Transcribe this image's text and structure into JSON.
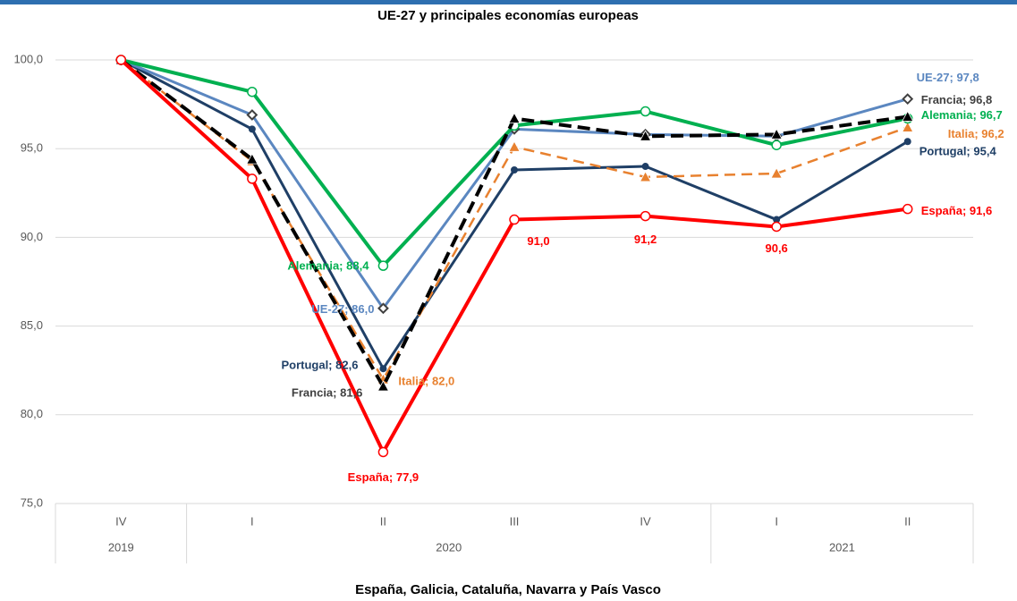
{
  "chart_data": {
    "type": "line",
    "title": "UE-27 y principales economías europeas",
    "caption": "España, Galicia, Cataluña, Navarra y País Vasco",
    "categories": [
      "IV",
      "I",
      "II",
      "III",
      "IV",
      "I",
      "II"
    ],
    "year_categories": [
      "2019",
      "2020",
      null,
      null,
      null,
      "2021",
      null
    ],
    "ylim": [
      75,
      100
    ],
    "yticks": [
      {
        "value": 75,
        "label": "75,0"
      },
      {
        "value": 80,
        "label": "80,0"
      },
      {
        "value": 85,
        "label": "85,0"
      },
      {
        "value": 90,
        "label": "90,0"
      },
      {
        "value": 95,
        "label": "95,0"
      },
      {
        "value": 100,
        "label": "100,0"
      }
    ],
    "grid": true,
    "series": [
      {
        "name": "España",
        "color": "#ff0000",
        "marker": "circle-open",
        "dash": false,
        "values": [
          100.0,
          93.3,
          77.9,
          91.0,
          91.2,
          90.6,
          91.6
        ],
        "value_labels": [
          null,
          null,
          "España; 77,9",
          "91,0",
          "91,2",
          "90,6",
          "España; 91,6"
        ]
      },
      {
        "name": "Alemania",
        "color": "#00b050",
        "marker": "circle-open",
        "dash": false,
        "values": [
          100.0,
          98.2,
          88.4,
          96.3,
          97.1,
          95.2,
          96.7
        ],
        "value_labels": [
          null,
          null,
          "Alemania; 88,4",
          null,
          null,
          null,
          "Alemania; 96,7"
        ]
      },
      {
        "name": "UE-27",
        "color": "#5b87c0",
        "marker": "diamond",
        "dash": false,
        "values": [
          100.0,
          96.9,
          86.0,
          96.1,
          95.8,
          95.7,
          97.8
        ],
        "value_labels": [
          null,
          null,
          "UE-27; 86,0",
          null,
          null,
          null,
          "UE-27; 97,8"
        ]
      },
      {
        "name": "Francia",
        "color": "#000000",
        "marker": "triangle",
        "dash": true,
        "values": [
          100.0,
          94.4,
          81.6,
          96.7,
          95.7,
          95.8,
          96.8
        ],
        "value_labels": [
          null,
          null,
          "Francia; 81,6",
          null,
          null,
          null,
          "Francia; 96,8"
        ]
      },
      {
        "name": "Italia",
        "color": "#e8812f",
        "marker": "triangle",
        "dash": true,
        "values": [
          100.0,
          94.3,
          82.0,
          95.1,
          93.4,
          93.6,
          96.2
        ],
        "value_labels": [
          null,
          null,
          "Italia; 82,0",
          null,
          null,
          null,
          "Italia; 96,2"
        ]
      },
      {
        "name": "Portugal",
        "color": "#1f3f66",
        "marker": "dot",
        "dash": false,
        "values": [
          100.0,
          96.1,
          82.6,
          93.8,
          94.0,
          91.0,
          95.4
        ],
        "value_labels": [
          null,
          null,
          "Portugal; 82,6",
          null,
          null,
          null,
          "Portugal; 95,4"
        ]
      }
    ]
  }
}
